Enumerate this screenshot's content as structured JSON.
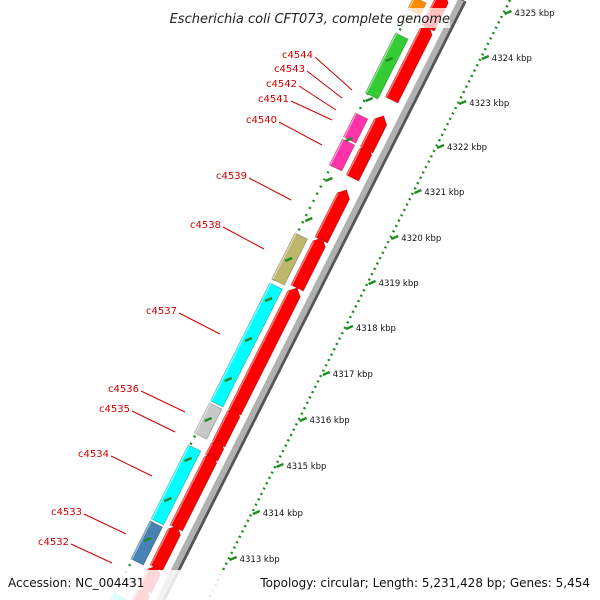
{
  "title": "Escherichia coli CFT073, complete genome",
  "footer": {
    "accession": "Accession: NC_004431",
    "summary": "Topology: circular; Length: 5,231,428 bp; Genes: 5,454"
  },
  "colors": {
    "backbone": "#999999",
    "forward_strand": "#ff0000",
    "label": "#cc0000",
    "tick": "#228b22"
  },
  "gene_labels": [
    "c4544",
    "c4543",
    "c4542",
    "c4541",
    "c4540",
    "c4539",
    "c4538",
    "c4537",
    "c4536",
    "c4535",
    "c4534",
    "c4533",
    "c4532"
  ],
  "kbp_ticks": [
    "4325 kbp",
    "4324 kbp",
    "4323 kbp",
    "4322 kbp",
    "4321 kbp",
    "4320 kbp",
    "4319 kbp",
    "4318 kbp",
    "4317 kbp",
    "4316 kbp",
    "4315 kbp",
    "4314 kbp",
    "4313 kbp"
  ]
}
